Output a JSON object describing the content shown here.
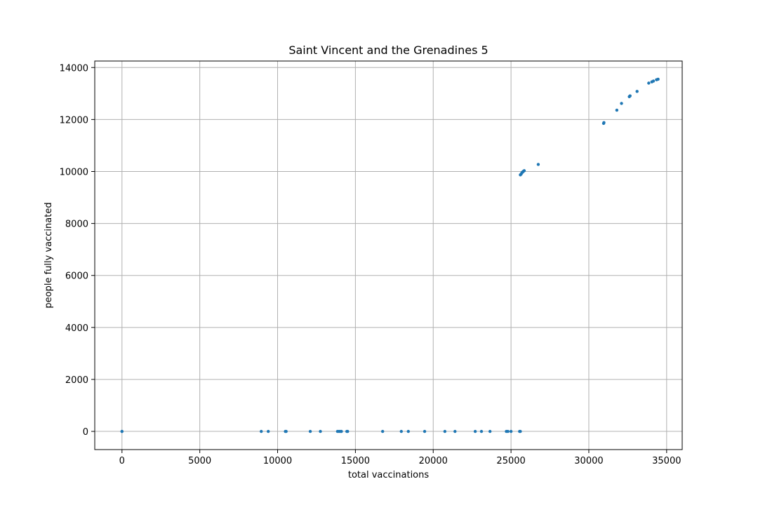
{
  "chart_data": {
    "type": "scatter",
    "title": "Saint Vincent and the Grenadines 5",
    "xlabel": "total vaccinations",
    "ylabel": "people fully vaccinated",
    "xlim": [
      -1750,
      36000
    ],
    "ylim": [
      -700,
      14250
    ],
    "xticks": [
      0,
      5000,
      10000,
      15000,
      20000,
      25000,
      30000,
      35000
    ],
    "yticks": [
      0,
      2000,
      4000,
      6000,
      8000,
      10000,
      12000,
      14000
    ],
    "grid": true,
    "marker_color": "#1f77b4",
    "series": [
      {
        "x": [
          0,
          0,
          8950,
          9400,
          10500,
          10550,
          12100,
          12750,
          13850,
          13950,
          14050,
          14100,
          14450,
          14500,
          16750,
          17950,
          18400,
          19450,
          20750,
          21400,
          22700,
          23100,
          23650,
          24700,
          24800,
          25000,
          25550,
          25600,
          25600,
          25650,
          25700,
          25750,
          25800,
          25850,
          26750,
          30950,
          30970,
          31800,
          32100,
          32600,
          32650,
          33100,
          33850,
          34050,
          34150,
          34350,
          34450
        ],
        "y": [
          0,
          0,
          0,
          0,
          0,
          0,
          0,
          0,
          0,
          0,
          0,
          0,
          0,
          0,
          0,
          0,
          0,
          0,
          0,
          0,
          0,
          0,
          0,
          0,
          0,
          0,
          0,
          0,
          9870,
          9900,
          9950,
          9980,
          10010,
          10030,
          10270,
          11850,
          11880,
          12360,
          12620,
          12880,
          12910,
          13080,
          13400,
          13450,
          13480,
          13530,
          13550
        ]
      }
    ]
  }
}
